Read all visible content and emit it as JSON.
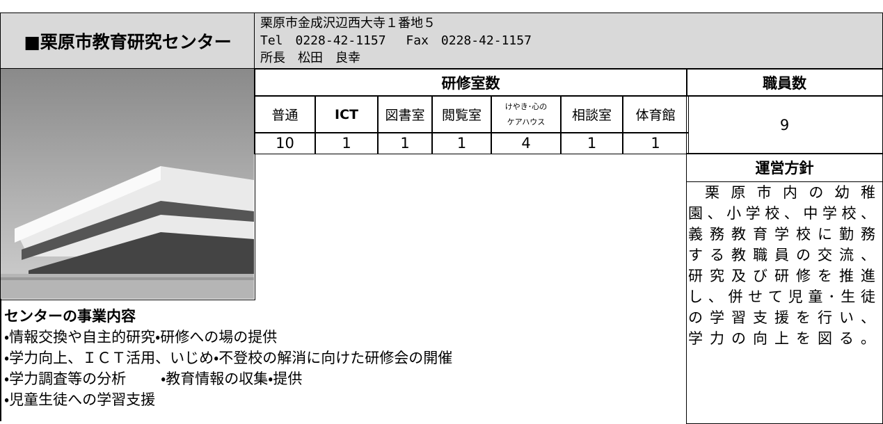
{
  "header": {
    "name": "■栗原市教育研究センター",
    "address_lines": [
      "栗原市金成沢辺西大寺１番地５",
      "Tel　0228-42-1157　 Fax　0228-42-1157",
      "所長　松田　良幸"
    ]
  },
  "rooms": {
    "title": "研修室数",
    "headers": [
      "普通",
      "ICT",
      "図書室",
      "閲覧室",
      "けやき･心のケアハウス",
      "相談室",
      "体育館"
    ],
    "counts": [
      "10",
      "1",
      "1",
      "1",
      "4",
      "1",
      "1"
    ]
  },
  "staff": {
    "title": "職員数",
    "count": "9"
  },
  "policy": {
    "title": "運営方針",
    "lines": [
      "栗原市内の幼稚",
      "園、小学校、中学校、",
      "義務教育学校に勤務",
      "する教職員の交流、",
      "研究及び研修を推進",
      "し、併せて児童･生徒",
      "の学習支援を行い、",
      "学力の向上を図る。"
    ]
  },
  "activities": {
    "title": "センターの事業内容",
    "lines": [
      [
        "・情報交換や自主的研究・研修への場の提供"
      ],
      [
        "・学力向上、ＩＣＴ活用、いじめ・不登校の解消に向けた研修会の開催"
      ],
      [
        "・学力調査等の分析",
        "・教育情報の収集・提供"
      ],
      [
        "・児童生徒への学習支援"
      ]
    ]
  }
}
